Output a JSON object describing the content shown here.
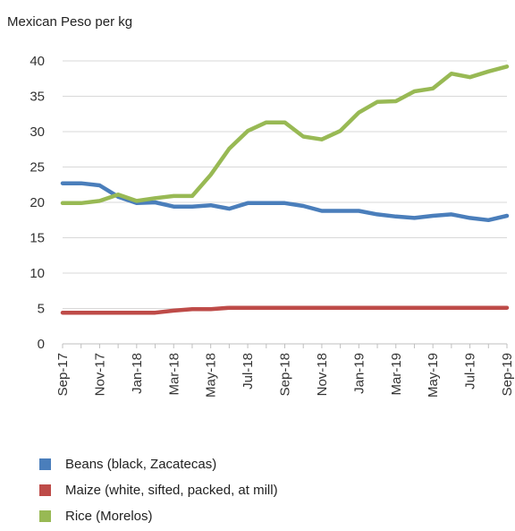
{
  "chart_data": {
    "type": "line",
    "ylabel": "Mexican Peso per kg",
    "ylim": [
      0,
      40
    ],
    "yticks": [
      0,
      5,
      10,
      15,
      20,
      25,
      30,
      35,
      40
    ],
    "grid": true,
    "legend_position": "bottom",
    "x": [
      "Sep-17",
      "Oct-17",
      "Nov-17",
      "Dec-17",
      "Jan-18",
      "Feb-18",
      "Mar-18",
      "Apr-18",
      "May-18",
      "Jun-18",
      "Jul-18",
      "Aug-18",
      "Sep-18",
      "Oct-18",
      "Nov-18",
      "Dec-18",
      "Jan-19",
      "Feb-19",
      "Mar-19",
      "Apr-19",
      "May-19",
      "Jun-19",
      "Jul-19",
      "Aug-19",
      "Sep-19"
    ],
    "xtick_labels": [
      "Sep-17",
      "Nov-17",
      "Jan-18",
      "Mar-18",
      "May-18",
      "Jul-18",
      "Sep-18",
      "Nov-18",
      "Jan-19",
      "Mar-19",
      "May-19",
      "Jul-19",
      "Sep-19"
    ],
    "series": [
      {
        "name": "Beans (black, Zacatecas)",
        "color": "#4a7ebb",
        "values": [
          22.7,
          22.7,
          22.4,
          20.8,
          19.9,
          20.0,
          19.4,
          19.4,
          19.6,
          19.1,
          19.9,
          19.9,
          19.9,
          19.5,
          18.8,
          18.8,
          18.8,
          18.3,
          18.0,
          17.8,
          18.1,
          18.3,
          17.8,
          17.5,
          18.1
        ]
      },
      {
        "name": "Maize (white, sifted, packed, at mill)",
        "color": "#be4b48",
        "values": [
          4.4,
          4.4,
          4.4,
          4.4,
          4.4,
          4.4,
          4.7,
          4.9,
          4.9,
          5.1,
          5.1,
          5.1,
          5.1,
          5.1,
          5.1,
          5.1,
          5.1,
          5.1,
          5.1,
          5.1,
          5.1,
          5.1,
          5.1,
          5.1,
          5.1
        ]
      },
      {
        "name": "Rice (Morelos)",
        "color": "#98b954",
        "values": [
          19.9,
          19.9,
          20.2,
          21.1,
          20.2,
          20.6,
          20.9,
          20.9,
          23.9,
          27.6,
          30.1,
          31.3,
          31.3,
          29.3,
          28.9,
          30.1,
          32.7,
          34.2,
          34.3,
          35.7,
          36.1,
          38.2,
          37.7,
          38.5,
          39.2
        ]
      }
    ]
  }
}
